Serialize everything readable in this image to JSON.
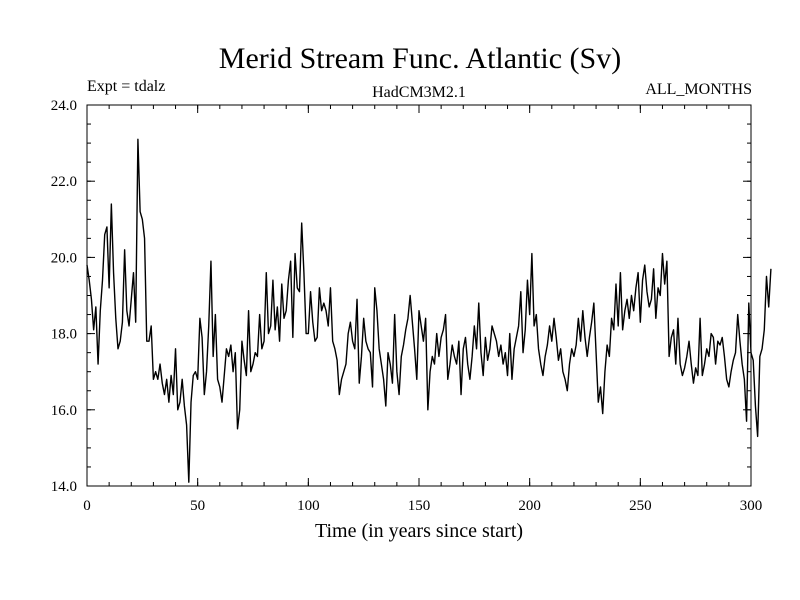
{
  "chart_data": {
    "type": "line",
    "title": "Merid Stream Func. Atlantic (Sv)",
    "left_label": "Expt = tdalz",
    "center_label": "HadCM3M2.1",
    "right_label": "ALL_MONTHS",
    "xlabel": "Time (in years since start)",
    "ylabel": "",
    "xlim": [
      0,
      300
    ],
    "ylim": [
      14.0,
      24.0
    ],
    "x_ticks": [
      0,
      50,
      100,
      150,
      200,
      250,
      300
    ],
    "x_tick_labels": [
      "0",
      "50",
      "100",
      "150",
      "200",
      "250",
      "300"
    ],
    "y_ticks": [
      14.0,
      16.0,
      18.0,
      20.0,
      22.0,
      24.0
    ],
    "y_tick_labels": [
      "14.0",
      "16.0",
      "18.0",
      "20.0",
      "22.0",
      "24.0"
    ],
    "x_minor_step": 10,
    "y_minor_step": 0.5,
    "grid": false,
    "line_color": "#000000",
    "series": [
      {
        "name": "Merid Stream Func. Atlantic",
        "x_start": 0,
        "x_step": 1,
        "values": [
          19.8,
          19.4,
          18.9,
          18.1,
          18.7,
          17.2,
          18.6,
          19.4,
          20.6,
          20.8,
          19.2,
          21.4,
          19.6,
          18.4,
          17.6,
          17.8,
          18.3,
          20.2,
          18.6,
          18.2,
          18.9,
          19.6,
          18.3,
          23.1,
          21.2,
          21.0,
          20.5,
          17.8,
          17.8,
          18.2,
          16.8,
          17.0,
          16.8,
          17.2,
          16.7,
          16.4,
          16.8,
          16.2,
          16.9,
          16.4,
          17.6,
          16.0,
          16.2,
          16.8,
          16.1,
          15.6,
          14.1,
          16.2,
          16.9,
          17.0,
          16.8,
          18.4,
          17.9,
          16.4,
          17.0,
          18.2,
          19.9,
          17.4,
          18.5,
          16.8,
          16.6,
          16.2,
          16.9,
          17.6,
          17.4,
          17.7,
          17.0,
          17.5,
          15.5,
          16.0,
          17.8,
          17.3,
          16.9,
          18.6,
          17.0,
          17.2,
          17.5,
          17.4,
          18.5,
          17.6,
          17.8,
          19.6,
          18.0,
          18.2,
          19.4,
          18.1,
          18.7,
          17.8,
          19.3,
          18.4,
          18.6,
          19.4,
          19.9,
          17.9,
          20.1,
          19.2,
          19.1,
          20.9,
          19.6,
          18.0,
          18.0,
          19.1,
          18.3,
          17.8,
          17.9,
          19.2,
          18.6,
          18.8,
          18.6,
          18.2,
          19.2,
          17.8,
          17.6,
          17.3,
          16.4,
          16.8,
          17.0,
          17.2,
          18.0,
          18.3,
          17.8,
          17.6,
          18.9,
          16.7,
          17.4,
          18.4,
          17.8,
          17.6,
          17.5,
          16.6,
          19.2,
          18.6,
          17.6,
          17.2,
          16.8,
          16.1,
          17.5,
          17.2,
          16.7,
          18.5,
          17.0,
          16.4,
          17.4,
          17.7,
          18.1,
          18.4,
          19.0,
          18.3,
          17.6,
          16.8,
          18.6,
          18.2,
          17.8,
          18.4,
          16.0,
          17.0,
          17.4,
          17.2,
          18.0,
          17.4,
          17.9,
          18.1,
          18.5,
          16.8,
          17.2,
          17.7,
          17.4,
          17.2,
          17.8,
          16.4,
          17.6,
          17.9,
          17.2,
          16.8,
          17.4,
          18.2,
          17.6,
          18.8,
          17.5,
          16.9,
          17.9,
          17.3,
          17.6,
          18.2,
          18.0,
          17.8,
          17.4,
          17.7,
          17.2,
          17.5,
          16.9,
          18.0,
          16.8,
          17.6,
          17.9,
          18.2,
          19.1,
          17.5,
          18.1,
          19.4,
          18.5,
          20.1,
          18.2,
          18.5,
          17.6,
          17.2,
          16.9,
          17.4,
          17.7,
          18.2,
          17.8,
          18.4,
          17.9,
          17.3,
          17.6,
          17.0,
          16.8,
          16.5,
          17.2,
          17.6,
          17.4,
          17.7,
          18.4,
          17.8,
          18.6,
          17.9,
          17.4,
          17.9,
          18.3,
          18.8,
          17.5,
          16.2,
          16.6,
          15.9,
          17.0,
          17.7,
          17.4,
          18.4,
          18.1,
          19.3,
          18.2,
          19.6,
          18.1,
          18.6,
          18.9,
          18.4,
          19.0,
          18.6,
          19.2,
          19.6,
          18.3,
          19.4,
          19.8,
          19.1,
          18.7,
          18.9,
          19.7,
          18.4,
          19.2,
          19.0,
          20.1,
          19.3,
          19.9,
          17.4,
          17.9,
          18.1,
          17.2,
          18.4,
          17.2,
          16.9,
          17.1,
          17.4,
          17.8,
          17.2,
          16.7,
          17.1,
          16.9,
          18.4,
          16.9,
          17.2,
          17.6,
          17.4,
          18.0,
          17.9,
          17.2,
          17.8,
          17.7,
          17.9,
          17.4,
          16.8,
          16.6,
          17.0,
          17.3,
          17.5,
          18.5,
          17.8,
          17.2,
          16.8,
          15.7,
          18.8,
          17.5,
          17.3,
          16.1,
          15.3,
          17.4,
          17.6,
          18.1,
          19.5,
          18.7,
          19.7
        ]
      }
    ]
  }
}
